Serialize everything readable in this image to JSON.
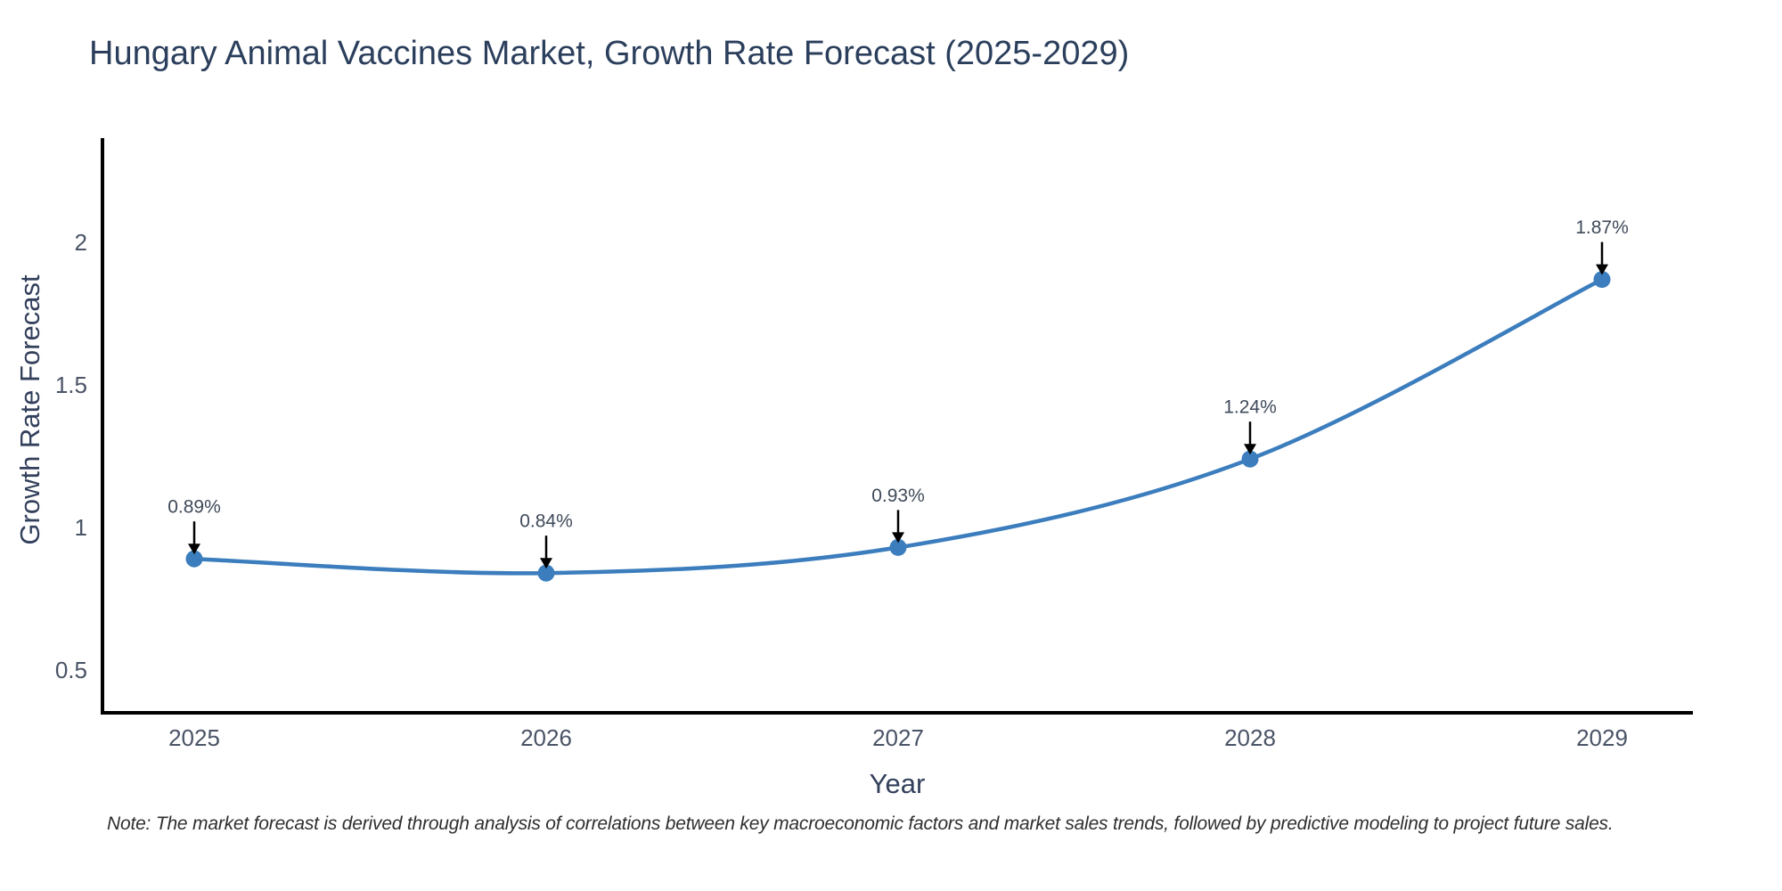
{
  "title": "Hungary Animal Vaccines Market, Growth Rate Forecast (2025-2029)",
  "note": "Note: The market forecast is derived through analysis of correlations between key macroeconomic factors and market sales trends, followed by predictive modeling to project future sales.",
  "chart_data": {
    "type": "line",
    "title": "Hungary Animal Vaccines Market, Growth Rate Forecast (2025-2029)",
    "xlabel": "Year",
    "ylabel": "Growth Rate Forecast",
    "x": [
      2025,
      2026,
      2027,
      2028,
      2029
    ],
    "y": [
      0.89,
      0.84,
      0.93,
      1.24,
      1.87
    ],
    "point_labels": [
      "0.89%",
      "0.84%",
      "0.93%",
      "1.24%",
      "1.87%"
    ],
    "xtick_labels": [
      "2025",
      "2026",
      "2027",
      "2028",
      "2029"
    ],
    "yticks": [
      0.5,
      1,
      1.5,
      2
    ],
    "ytick_labels": [
      "0.5",
      "1",
      "1.5",
      "2"
    ],
    "ylim": [
      0.35,
      2.46
    ],
    "grid": false,
    "line_shape": "spline",
    "legend": "none",
    "colors": {
      "line": "#3b7dbd",
      "marker": "#3b7dbd",
      "arrow": "#000000",
      "axis": "#000000",
      "title": "#2b3f5c",
      "axis_title": "#33405c",
      "tick": "#4a5366",
      "annotation": "#3f4a5a",
      "note": "#2f2f2f",
      "background": "#ffffff"
    }
  }
}
